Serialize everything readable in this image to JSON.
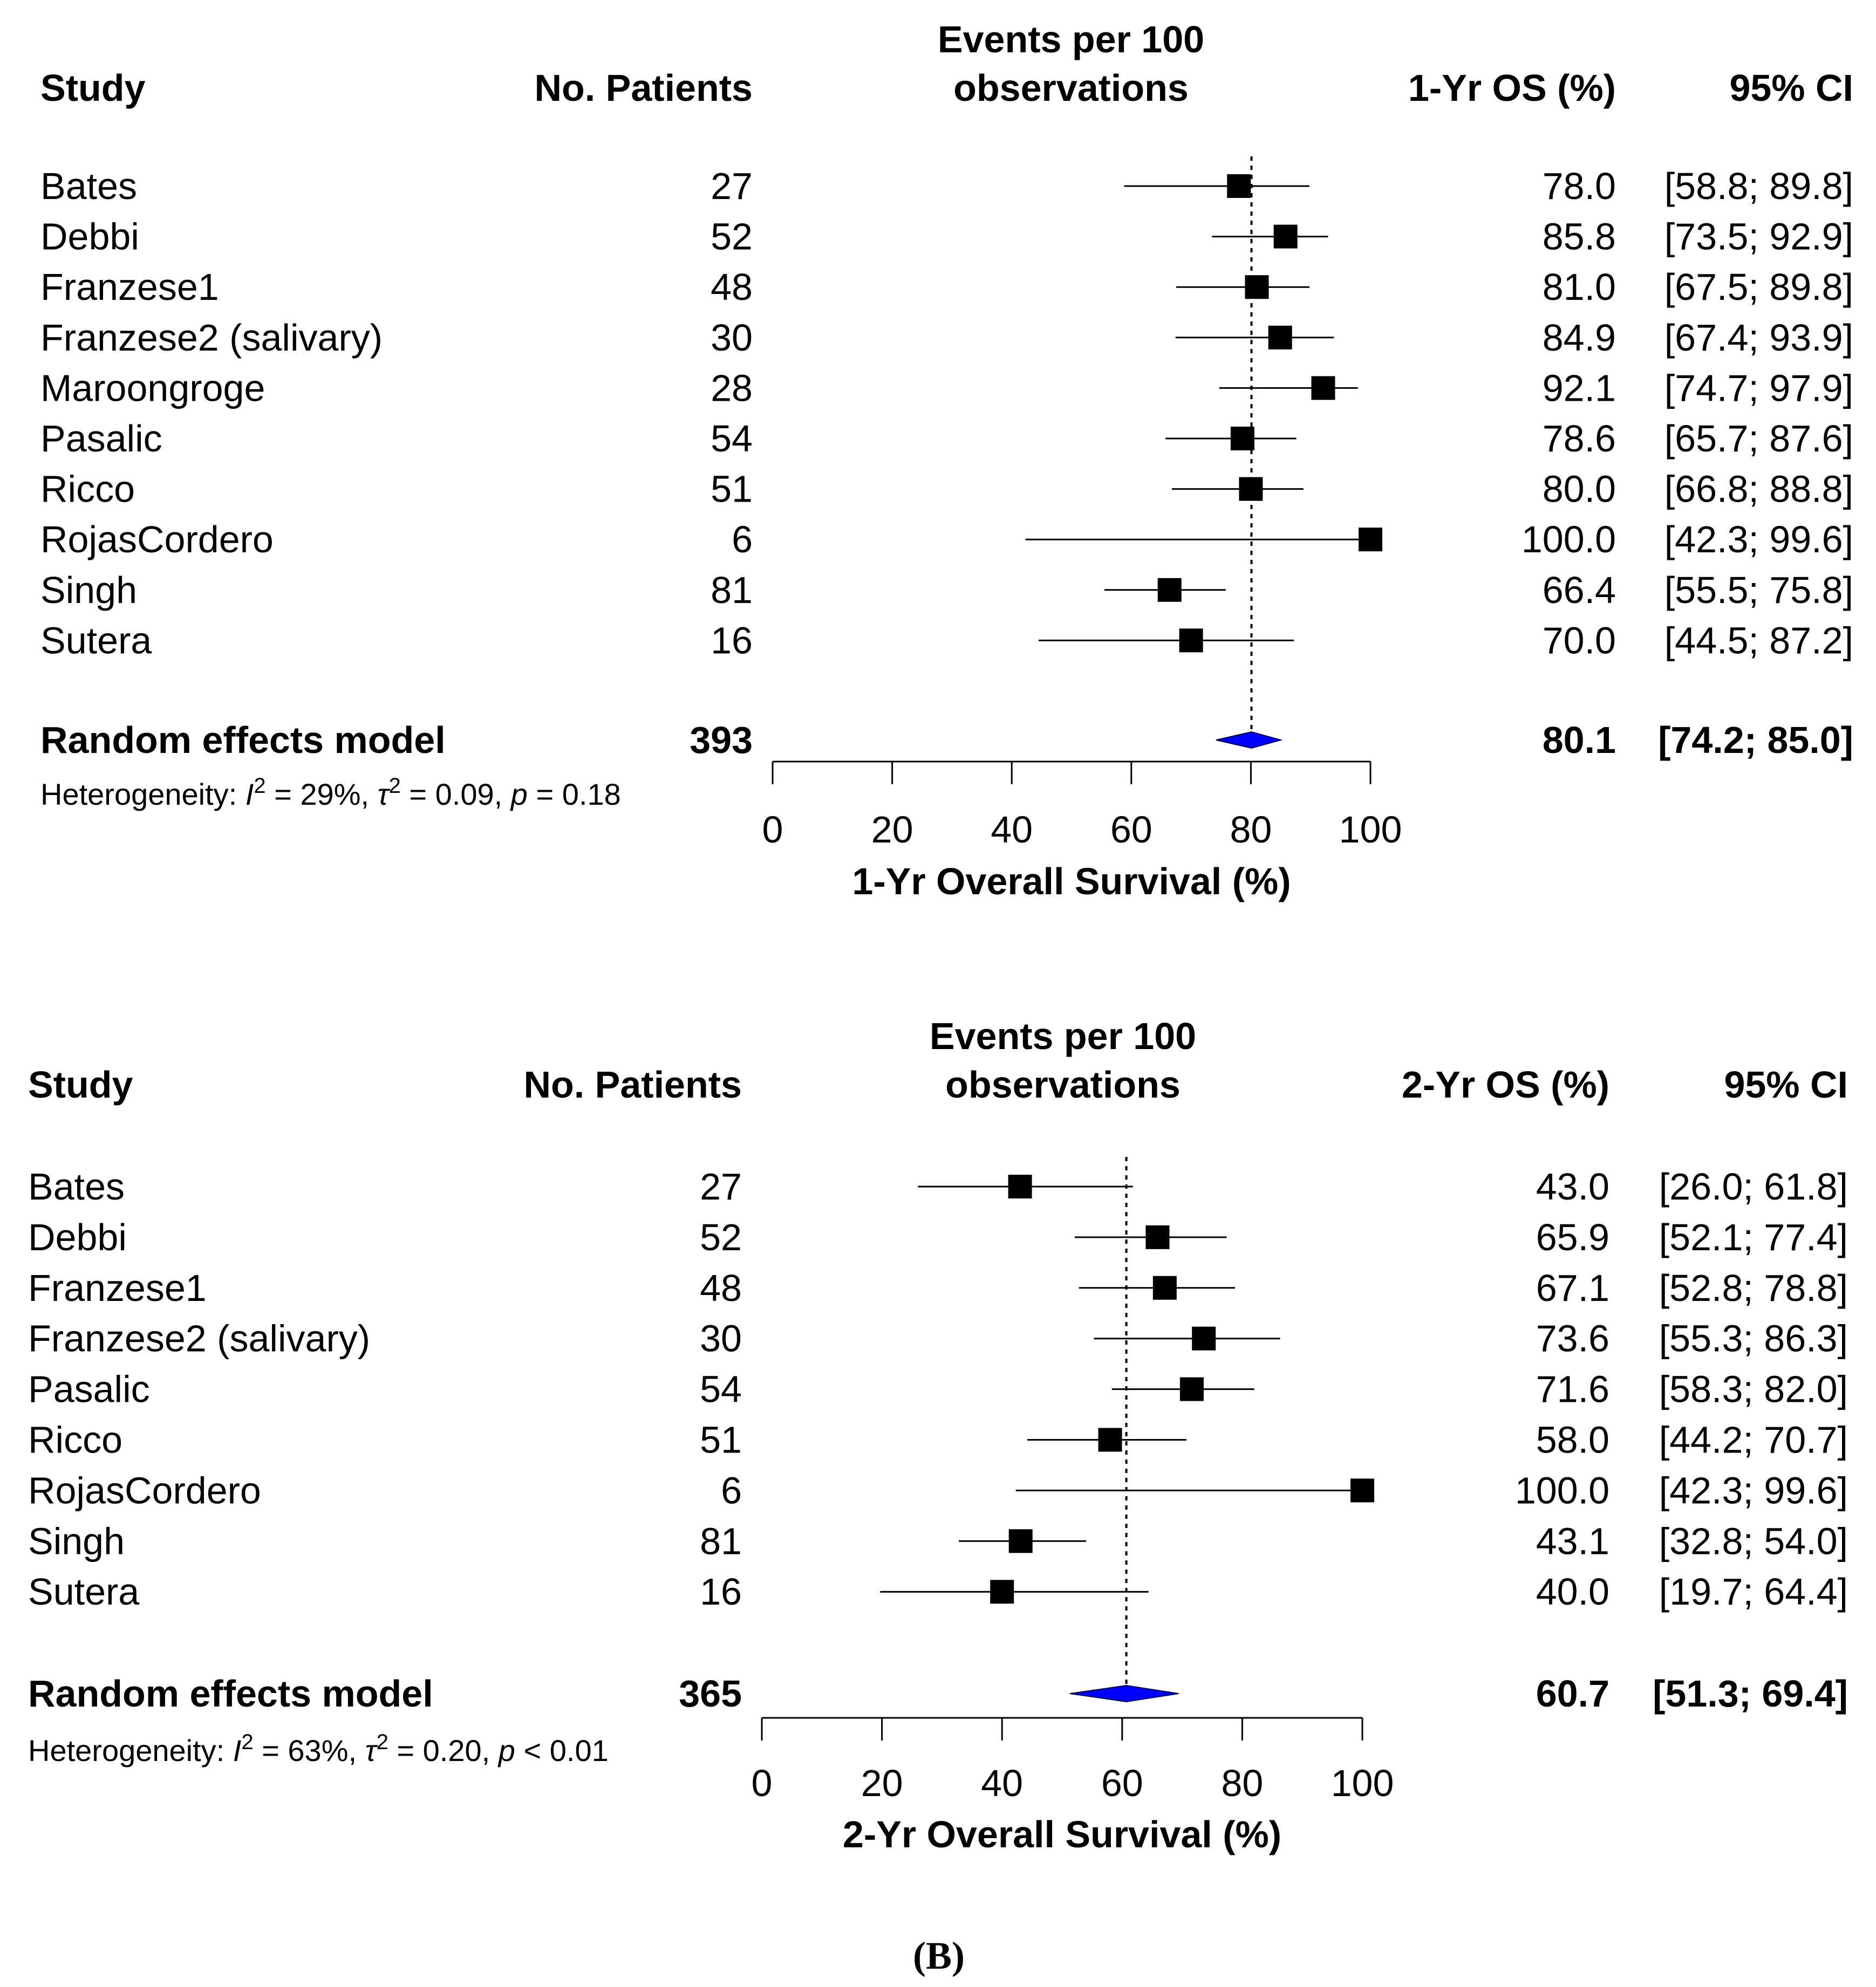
{
  "chart_data": [
    {
      "type": "forest",
      "headers": {
        "study": "Study",
        "patients": "No. Patients",
        "events_line1": "Events per 100",
        "events_line2": "observations",
        "effect": "1-Yr OS (%)",
        "ci": "95% CI"
      },
      "rows": [
        {
          "study": "Bates",
          "patients": "27",
          "est": 78.0,
          "lo": 58.8,
          "hi": 89.8,
          "est_label": "78.0",
          "ci_label": "[58.8; 89.8]"
        },
        {
          "study": "Debbi",
          "patients": "52",
          "est": 85.8,
          "lo": 73.5,
          "hi": 92.9,
          "est_label": "85.8",
          "ci_label": "[73.5; 92.9]"
        },
        {
          "study": "Franzese1",
          "patients": "48",
          "est": 81.0,
          "lo": 67.5,
          "hi": 89.8,
          "est_label": "81.0",
          "ci_label": "[67.5; 89.8]"
        },
        {
          "study": "Franzese2 (salivary)",
          "patients": "30",
          "est": 84.9,
          "lo": 67.4,
          "hi": 93.9,
          "est_label": "84.9",
          "ci_label": "[67.4; 93.9]"
        },
        {
          "study": "Maroongroge",
          "patients": "28",
          "est": 92.1,
          "lo": 74.7,
          "hi": 97.9,
          "est_label": "92.1",
          "ci_label": "[74.7; 97.9]"
        },
        {
          "study": "Pasalic",
          "patients": "54",
          "est": 78.6,
          "lo": 65.7,
          "hi": 87.6,
          "est_label": "78.6",
          "ci_label": "[65.7; 87.6]"
        },
        {
          "study": "Ricco",
          "patients": "51",
          "est": 80.0,
          "lo": 66.8,
          "hi": 88.8,
          "est_label": "80.0",
          "ci_label": "[66.8; 88.8]"
        },
        {
          "study": "RojasCordero",
          "patients": "6",
          "est": 100.0,
          "lo": 42.3,
          "hi": 99.6,
          "est_label": "100.0",
          "ci_label": "[42.3; 99.6]"
        },
        {
          "study": "Singh",
          "patients": "81",
          "est": 66.4,
          "lo": 55.5,
          "hi": 75.8,
          "est_label": "66.4",
          "ci_label": "[55.5; 75.8]"
        },
        {
          "study": "Sutera",
          "patients": "16",
          "est": 70.0,
          "lo": 44.5,
          "hi": 87.2,
          "est_label": "70.0",
          "ci_label": "[44.5; 87.2]"
        }
      ],
      "pooled": {
        "label": "Random effects model",
        "patients": "393",
        "est": 80.1,
        "lo": 74.2,
        "hi": 85.0,
        "est_label": "80.1",
        "ci_label": "[74.2; 85.0]"
      },
      "heterogeneity": {
        "prefix": "Heterogeneity: ",
        "i2_symbol": "I",
        "i2_value": " = 29%, ",
        "tau_symbol": "τ",
        "tau_value": " = 0.09, ",
        "p_symbol": "p",
        "p_value": " = 0.18"
      },
      "xlim": [
        0,
        100
      ],
      "xticks": [
        0,
        20,
        40,
        60,
        80,
        100
      ],
      "xlabel": "1-Yr Overall Survival (%)",
      "reference_line": 80.1,
      "colors": {
        "square": "#000000",
        "diamond": "#0000ff"
      }
    },
    {
      "type": "forest",
      "headers": {
        "study": "Study",
        "patients": "No. Patients",
        "events_line1": "Events per 100",
        "events_line2": "observations",
        "effect": "2-Yr OS (%)",
        "ci": "95% CI"
      },
      "rows": [
        {
          "study": "Bates",
          "patients": "27",
          "est": 43.0,
          "lo": 26.0,
          "hi": 61.8,
          "est_label": "43.0",
          "ci_label": "[26.0; 61.8]"
        },
        {
          "study": "Debbi",
          "patients": "52",
          "est": 65.9,
          "lo": 52.1,
          "hi": 77.4,
          "est_label": "65.9",
          "ci_label": "[52.1; 77.4]"
        },
        {
          "study": "Franzese1",
          "patients": "48",
          "est": 67.1,
          "lo": 52.8,
          "hi": 78.8,
          "est_label": "67.1",
          "ci_label": "[52.8; 78.8]"
        },
        {
          "study": "Franzese2 (salivary)",
          "patients": "30",
          "est": 73.6,
          "lo": 55.3,
          "hi": 86.3,
          "est_label": "73.6",
          "ci_label": "[55.3; 86.3]"
        },
        {
          "study": "Pasalic",
          "patients": "54",
          "est": 71.6,
          "lo": 58.3,
          "hi": 82.0,
          "est_label": "71.6",
          "ci_label": "[58.3; 82.0]"
        },
        {
          "study": "Ricco",
          "patients": "51",
          "est": 58.0,
          "lo": 44.2,
          "hi": 70.7,
          "est_label": "58.0",
          "ci_label": "[44.2; 70.7]"
        },
        {
          "study": "RojasCordero",
          "patients": "6",
          "est": 100.0,
          "lo": 42.3,
          "hi": 99.6,
          "est_label": "100.0",
          "ci_label": "[42.3; 99.6]"
        },
        {
          "study": "Singh",
          "patients": "81",
          "est": 43.1,
          "lo": 32.8,
          "hi": 54.0,
          "est_label": "43.1",
          "ci_label": "[32.8; 54.0]"
        },
        {
          "study": "Sutera",
          "patients": "16",
          "est": 40.0,
          "lo": 19.7,
          "hi": 64.4,
          "est_label": "40.0",
          "ci_label": "[19.7; 64.4]"
        }
      ],
      "pooled": {
        "label": "Random effects model",
        "patients": "365",
        "est": 60.7,
        "lo": 51.3,
        "hi": 69.4,
        "est_label": "60.7",
        "ci_label": "[51.3; 69.4]"
      },
      "heterogeneity": {
        "prefix": "Heterogeneity: ",
        "i2_symbol": "I",
        "i2_value": " = 63%, ",
        "tau_symbol": "τ",
        "tau_value": " = 0.20, ",
        "p_symbol": "p",
        "p_value": " < 0.01"
      },
      "xlim": [
        0,
        100
      ],
      "xticks": [
        0,
        20,
        40,
        60,
        80,
        100
      ],
      "xlabel": "2-Yr Overall Survival (%)",
      "reference_line": 60.7,
      "colors": {
        "square": "#000000",
        "diamond": "#0000ff"
      }
    }
  ],
  "caption": "(B)"
}
